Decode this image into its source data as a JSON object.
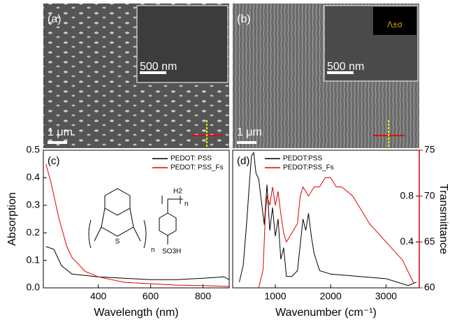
{
  "figure": {
    "panels": {
      "a": {
        "label": "(a)",
        "inset_scale": "500 nm",
        "scale": "1 μm"
      },
      "b": {
        "label": "(b)",
        "inset_scale": "500 nm",
        "scale": "1 μm",
        "inset_symbol": "Λ±σ"
      }
    },
    "structure": {
      "left_atom": "S",
      "left_index": "n",
      "right_group": "H2",
      "right_index": "n",
      "right_acid": "SO3H"
    }
  },
  "chart_data": [
    {
      "type": "line",
      "panel_label": "(c)",
      "xlabel": "Wavelength (nm)",
      "ylabel": "Absorption",
      "xlim": [
        190,
        900
      ],
      "xticks": [
        400,
        600,
        800
      ],
      "ylim": [
        0,
        0.5
      ],
      "yticks": [
        {
          "value": 0,
          "label": "0.0"
        },
        0.1,
        0.2,
        0.3,
        0.4,
        0.5
      ],
      "legend": "upper right",
      "series": [
        {
          "name": "PEDOT: PSS",
          "color": "#000000",
          "x": [
            200,
            230,
            260,
            300,
            400,
            500,
            600,
            700,
            800,
            880,
            900
          ],
          "values": [
            0.15,
            0.14,
            0.08,
            0.05,
            0.04,
            0.035,
            0.03,
            0.03,
            0.035,
            0.04,
            0.03
          ]
        },
        {
          "name": "PEDOT: PSS_Fs",
          "color": "#e00000",
          "x": [
            200,
            220,
            250,
            280,
            300,
            350,
            400,
            500,
            600,
            700,
            800,
            900
          ],
          "values": [
            0.45,
            0.38,
            0.25,
            0.15,
            0.11,
            0.06,
            0.04,
            0.02,
            0.015,
            0.01,
            0.008,
            0.005
          ]
        }
      ]
    },
    {
      "type": "line",
      "panel_label": "(d)",
      "xlabel": "Wavenumber (cm⁻¹)",
      "y2label": "Transmittance",
      "xlim": [
        230,
        3600
      ],
      "xticks": [
        1000,
        2000,
        3000
      ],
      "ylim": [
        0,
        1.2
      ],
      "yticks": [
        0.4,
        0.8
      ],
      "y2lim": [
        60,
        75
      ],
      "y2ticks": [
        60,
        65,
        70,
        75
      ],
      "y2color": "#e00000",
      "legend": "upper left",
      "series": [
        {
          "name": "PEDOT:PSS",
          "color": "#000000",
          "x": [
            350,
            420,
            480,
            530,
            570,
            610,
            650,
            700,
            750,
            800,
            850,
            900,
            950,
            1000,
            1050,
            1100,
            1150,
            1200,
            1300,
            1400,
            1500,
            1550,
            1600,
            1650,
            1700,
            1800,
            2000,
            2500,
            3000,
            3400,
            3550
          ],
          "values": [
            0.05,
            0.2,
            0.55,
            0.9,
            1.15,
            1.18,
            1.0,
            0.95,
            0.75,
            0.55,
            0.9,
            0.5,
            0.7,
            0.45,
            0.6,
            0.25,
            0.35,
            0.1,
            0.1,
            0.15,
            0.6,
            0.5,
            0.65,
            0.45,
            0.3,
            0.15,
            0.12,
            0.1,
            0.08,
            0.02,
            0.05
          ]
        },
        {
          "name": "PEDOT:PSS_Fs",
          "color": "#e00000",
          "axis": "y2",
          "x": [
            700,
            780,
            820,
            850,
            900,
            950,
            1000,
            1050,
            1100,
            1150,
            1200,
            1300,
            1400,
            1450,
            1500,
            1600,
            1700,
            1800,
            1900,
            2000,
            2100,
            2200,
            2400,
            2600,
            2700,
            3000,
            3300,
            3500
          ],
          "values": [
            60,
            62,
            68,
            70,
            69,
            71,
            69,
            70.5,
            68,
            66,
            65,
            66,
            67,
            70,
            71,
            70,
            71,
            71,
            72,
            72,
            71,
            71,
            70,
            68,
            67,
            65,
            63,
            60.5
          ]
        }
      ]
    }
  ]
}
